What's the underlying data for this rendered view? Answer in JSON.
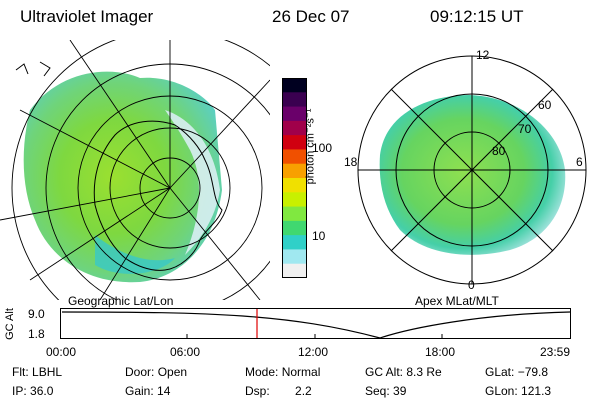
{
  "header": {
    "instrument": "Ultraviolet Imager",
    "date": "26 Dec 07",
    "time": "09:12:15 UT"
  },
  "left_panel": {
    "label": "Geographic Lat/Lon"
  },
  "right_panel": {
    "label": "Apex MLat/MLT",
    "mlt_labels": {
      "top": "12",
      "left": "18",
      "right": "6",
      "bottom": "0"
    },
    "mlat_labels": [
      "60",
      "70",
      "80"
    ]
  },
  "colorbar": {
    "ticks": [
      "100",
      "10"
    ],
    "unit_label": "photon cm⁻²s⁻¹",
    "colors": [
      "#000020",
      "#3a0050",
      "#6a006a",
      "#a0004a",
      "#d00010",
      "#f05000",
      "#f8a000",
      "#f0e000",
      "#c8f000",
      "#80e840",
      "#40d870",
      "#30d0c8",
      "#a0e8f0",
      "#f0f0f0"
    ]
  },
  "timeline": {
    "axis_label": "GC Alt",
    "y_ticks": [
      "9.0",
      "1.8"
    ],
    "x_ticks": [
      "00:00",
      "06:00",
      "12:00",
      "18:00",
      "23:59"
    ],
    "current_time_marker": "09:12"
  },
  "info": {
    "filter_label": "Flt:",
    "filter": "LBHL",
    "ip_label": "IP:",
    "ip": "36.0",
    "door_label": "Door:",
    "door": "Open",
    "gain_label": "Gain:",
    "gain": "14",
    "mode_label": "Mode:",
    "mode": "Normal",
    "dsp_label": "Dsp:",
    "dsp": "2.2",
    "gcalt_label": "GC Alt:",
    "gcalt": "8.3 Re",
    "seq_label": "Seq:",
    "seq": "39",
    "glat_label": "GLat:",
    "glat": "−79.8",
    "glon_label": "GLon:",
    "glon": "121.3"
  }
}
